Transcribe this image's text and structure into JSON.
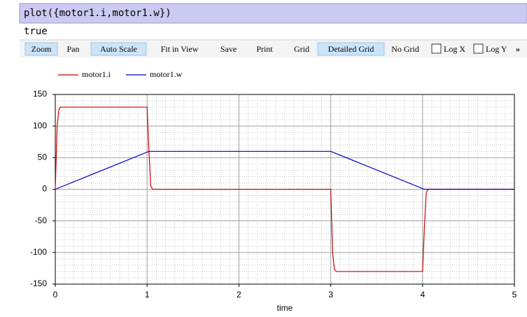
{
  "command": "plot({motor1.i,motor1.w})",
  "output": "true",
  "toolbar": {
    "buttons": [
      {
        "label": "Zoom",
        "active": true
      },
      {
        "label": "Pan",
        "active": false
      },
      {
        "label": "Auto Scale",
        "active": true
      },
      {
        "label": "Fit in View",
        "active": false
      },
      {
        "label": "Save",
        "active": false
      },
      {
        "label": "Print",
        "active": false
      },
      {
        "label": "Grid",
        "active": false
      },
      {
        "label": "Detailed Grid",
        "active": true
      },
      {
        "label": "No Grid",
        "active": false
      }
    ],
    "checkboxes": [
      {
        "label": "Log X",
        "checked": false
      },
      {
        "label": "Log Y",
        "checked": false
      }
    ],
    "more": "»"
  },
  "chart_data": {
    "type": "line",
    "xlabel": "time",
    "xlim": [
      0,
      5
    ],
    "xticks": [
      0,
      1,
      2,
      3,
      4,
      5
    ],
    "ylim": [
      -150,
      150
    ],
    "yticks": [
      -150,
      -100,
      -50,
      0,
      50,
      100,
      150
    ],
    "grid": "detailed",
    "legend": "top-left",
    "series": [
      {
        "name": "motor1.i",
        "color": "#cc0000",
        "x": [
          0,
          0.02,
          0.04,
          0.06,
          1.0,
          1.02,
          1.04,
          1.06,
          3.0,
          3.02,
          3.04,
          3.06,
          4.0,
          4.02,
          4.04,
          4.06,
          5
        ],
        "values": [
          0,
          100,
          127,
          130,
          130,
          60,
          5,
          0,
          0,
          -100,
          -127,
          -130,
          -130,
          -60,
          -5,
          0,
          0
        ]
      },
      {
        "name": "motor1.w",
        "color": "#0000cc",
        "x": [
          0,
          1.02,
          3.0,
          4.02,
          5
        ],
        "values": [
          0,
          60,
          60,
          0,
          0
        ]
      }
    ]
  }
}
